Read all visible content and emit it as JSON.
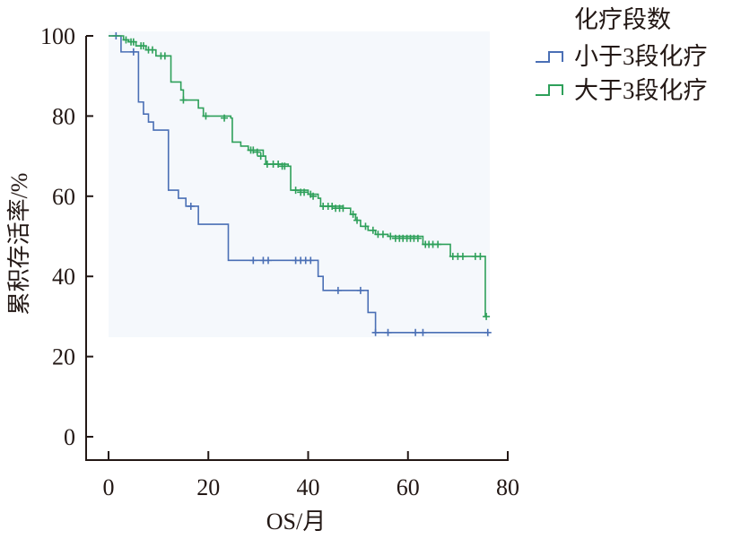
{
  "chart_data": {
    "type": "line",
    "subtype": "kaplan-meier-step",
    "title": "",
    "xlabel": "OS/月",
    "ylabel": "累积存活率/%",
    "xlim": [
      0,
      80
    ],
    "ylim": [
      0,
      100
    ],
    "xticks": [
      0,
      20,
      40,
      60,
      80
    ],
    "yticks": [
      0,
      20,
      40,
      60,
      80,
      100
    ],
    "grid": false,
    "legend_title": "化疗段数",
    "legend_position": "top-right-outside",
    "background_shading": {
      "color": "#f5f8fc",
      "x_range": [
        0,
        76.5
      ],
      "y_range": [
        25,
        101
      ]
    },
    "series": [
      {
        "name": "小于3段化疗",
        "color": "#4a6fb5",
        "steps": [
          {
            "x": 0,
            "y": 100
          },
          {
            "x": 2.5,
            "y": 96
          },
          {
            "x": 6,
            "y": 83.5
          },
          {
            "x": 7,
            "y": 80.5
          },
          {
            "x": 8,
            "y": 78.5
          },
          {
            "x": 9,
            "y": 76.5
          },
          {
            "x": 12,
            "y": 61.5
          },
          {
            "x": 14,
            "y": 59.5
          },
          {
            "x": 15.5,
            "y": 57.5
          },
          {
            "x": 18,
            "y": 53
          },
          {
            "x": 24,
            "y": 44
          },
          {
            "x": 42,
            "y": 40
          },
          {
            "x": 43,
            "y": 36.5
          },
          {
            "x": 52,
            "y": 31
          },
          {
            "x": 53.5,
            "y": 26
          }
        ],
        "end_x": 76,
        "censored": [
          {
            "x": 1.5,
            "y": 100
          },
          {
            "x": 5,
            "y": 96
          },
          {
            "x": 16.5,
            "y": 57.5
          },
          {
            "x": 29,
            "y": 44
          },
          {
            "x": 31,
            "y": 44
          },
          {
            "x": 32,
            "y": 44
          },
          {
            "x": 37.5,
            "y": 44
          },
          {
            "x": 38.5,
            "y": 44
          },
          {
            "x": 39.5,
            "y": 44
          },
          {
            "x": 40.5,
            "y": 44
          },
          {
            "x": 46,
            "y": 36.5
          },
          {
            "x": 50.5,
            "y": 36.5
          },
          {
            "x": 53.5,
            "y": 26
          },
          {
            "x": 56,
            "y": 26
          },
          {
            "x": 61.5,
            "y": 26
          },
          {
            "x": 63,
            "y": 26
          },
          {
            "x": 76,
            "y": 26
          }
        ]
      },
      {
        "name": "大于3段化疗",
        "color": "#2ea05a",
        "steps": [
          {
            "x": 0,
            "y": 100
          },
          {
            "x": 3,
            "y": 99
          },
          {
            "x": 4,
            "y": 98.5
          },
          {
            "x": 5.5,
            "y": 97.5
          },
          {
            "x": 7.5,
            "y": 96.5
          },
          {
            "x": 9.5,
            "y": 95
          },
          {
            "x": 12.5,
            "y": 88.5
          },
          {
            "x": 14.5,
            "y": 86.5
          },
          {
            "x": 15,
            "y": 84
          },
          {
            "x": 18,
            "y": 82
          },
          {
            "x": 19,
            "y": 80
          },
          {
            "x": 24.5,
            "y": 79.5
          },
          {
            "x": 24.8,
            "y": 73.5
          },
          {
            "x": 26.5,
            "y": 72.5
          },
          {
            "x": 28,
            "y": 71.5
          },
          {
            "x": 31,
            "y": 70
          },
          {
            "x": 31.5,
            "y": 68
          },
          {
            "x": 36,
            "y": 67.5
          },
          {
            "x": 36.5,
            "y": 61.5
          },
          {
            "x": 40,
            "y": 60.5
          },
          {
            "x": 42,
            "y": 59.5
          },
          {
            "x": 42.5,
            "y": 57.5
          },
          {
            "x": 47,
            "y": 57
          },
          {
            "x": 48.5,
            "y": 55.5
          },
          {
            "x": 49.5,
            "y": 54
          },
          {
            "x": 50.5,
            "y": 52.5
          },
          {
            "x": 52,
            "y": 51.5
          },
          {
            "x": 53.5,
            "y": 50.5
          },
          {
            "x": 56,
            "y": 50
          },
          {
            "x": 63,
            "y": 48
          },
          {
            "x": 68.5,
            "y": 45
          },
          {
            "x": 75.5,
            "y": 30
          }
        ],
        "end_x": 75.7,
        "censored": [
          {
            "x": 3.5,
            "y": 99
          },
          {
            "x": 4.5,
            "y": 98.5
          },
          {
            "x": 5,
            "y": 98.5
          },
          {
            "x": 6.5,
            "y": 97.5
          },
          {
            "x": 7,
            "y": 97.5
          },
          {
            "x": 8,
            "y": 96.5
          },
          {
            "x": 8.8,
            "y": 96.5
          },
          {
            "x": 10.5,
            "y": 95
          },
          {
            "x": 11.3,
            "y": 95
          },
          {
            "x": 15,
            "y": 84
          },
          {
            "x": 19.5,
            "y": 80
          },
          {
            "x": 23.2,
            "y": 79.5
          },
          {
            "x": 28.5,
            "y": 71.5
          },
          {
            "x": 29,
            "y": 71.5
          },
          {
            "x": 29.8,
            "y": 71
          },
          {
            "x": 30.5,
            "y": 70
          },
          {
            "x": 31.8,
            "y": 68
          },
          {
            "x": 33,
            "y": 68
          },
          {
            "x": 34,
            "y": 68
          },
          {
            "x": 34.8,
            "y": 67.5
          },
          {
            "x": 35.3,
            "y": 67.5
          },
          {
            "x": 37.5,
            "y": 61.5
          },
          {
            "x": 38.5,
            "y": 61
          },
          {
            "x": 39.2,
            "y": 61
          },
          {
            "x": 40.5,
            "y": 60.5
          },
          {
            "x": 41,
            "y": 60
          },
          {
            "x": 43,
            "y": 57.5
          },
          {
            "x": 44,
            "y": 57.5
          },
          {
            "x": 44.8,
            "y": 57.5
          },
          {
            "x": 45.5,
            "y": 57
          },
          {
            "x": 46.3,
            "y": 57
          },
          {
            "x": 47,
            "y": 57
          },
          {
            "x": 49,
            "y": 55.5
          },
          {
            "x": 49.8,
            "y": 54
          },
          {
            "x": 51.5,
            "y": 52.5
          },
          {
            "x": 53,
            "y": 51.5
          },
          {
            "x": 54,
            "y": 50.5
          },
          {
            "x": 55,
            "y": 50.5
          },
          {
            "x": 56.5,
            "y": 50
          },
          {
            "x": 57.5,
            "y": 49.5
          },
          {
            "x": 58.3,
            "y": 49.5
          },
          {
            "x": 59,
            "y": 49.5
          },
          {
            "x": 59.8,
            "y": 49.5
          },
          {
            "x": 60.5,
            "y": 49.5
          },
          {
            "x": 61.2,
            "y": 49.5
          },
          {
            "x": 62,
            "y": 49.5
          },
          {
            "x": 63.5,
            "y": 48
          },
          {
            "x": 64.2,
            "y": 48
          },
          {
            "x": 65,
            "y": 48
          },
          {
            "x": 66,
            "y": 48
          },
          {
            "x": 69,
            "y": 45
          },
          {
            "x": 70,
            "y": 45
          },
          {
            "x": 71,
            "y": 45
          },
          {
            "x": 73.5,
            "y": 45
          },
          {
            "x": 74.5,
            "y": 45
          },
          {
            "x": 75.7,
            "y": 30
          }
        ]
      }
    ]
  },
  "legend": {
    "title": "化疗段数",
    "items": [
      {
        "label": "小于3段化疗",
        "color": "#4a6fb5"
      },
      {
        "label": "大于3段化疗",
        "color": "#2ea05a"
      }
    ]
  },
  "axes": {
    "x": {
      "label": "OS/月",
      "ticks": [
        "0",
        "20",
        "40",
        "60",
        "80"
      ]
    },
    "y": {
      "label": "累积存活率/%",
      "ticks": [
        "0",
        "20",
        "40",
        "60",
        "80",
        "100"
      ]
    }
  }
}
